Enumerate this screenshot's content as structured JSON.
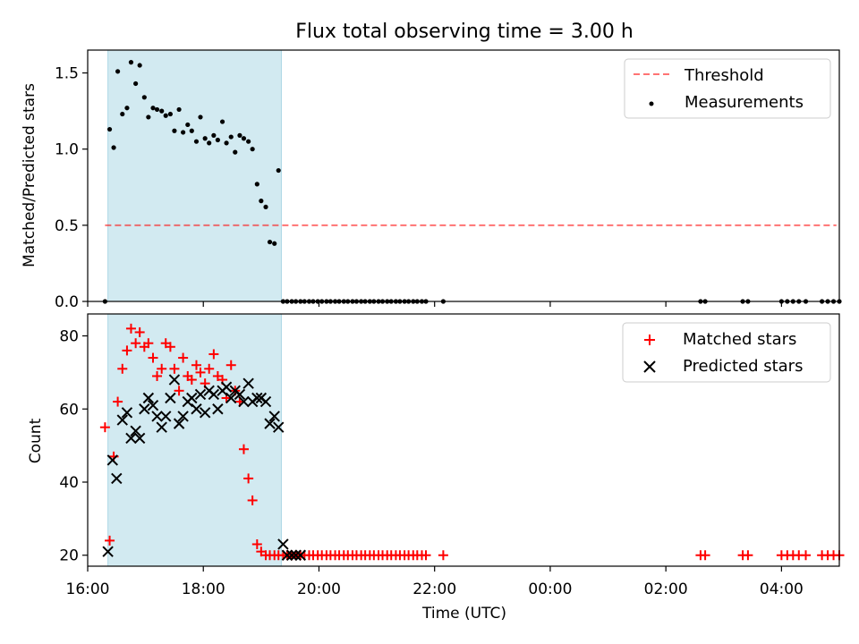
{
  "figure": {
    "title": "Flux total observing time = 3.00 h"
  },
  "colors": {
    "shade": "#add8e6",
    "threshold": "#ff0000",
    "measurements": "#000000",
    "matched": "#ff0000",
    "predicted": "#000000"
  },
  "chart_data": [
    {
      "type": "scatter",
      "ylabel": "Matched/Predicted stars",
      "xlim": [
        16.0,
        29.0
      ],
      "ylim": [
        0,
        1.65
      ],
      "yticks": [
        0.0,
        0.5,
        1.0,
        1.5
      ],
      "ytick_labels": [
        "0.0",
        "0.5",
        "1.0",
        "1.5"
      ],
      "shaded_region": [
        16.35,
        19.35
      ],
      "legend": {
        "position": "upper right",
        "entries": [
          "Threshold",
          "Measurements"
        ]
      },
      "threshold": {
        "name": "Threshold",
        "y": 0.5,
        "x": [
          16.3,
          28.95
        ]
      },
      "series": [
        {
          "name": "Measurements",
          "x": [
            16.3,
            16.38,
            16.45,
            16.52,
            16.6,
            16.68,
            16.75,
            16.83,
            16.9,
            16.98,
            17.05,
            17.13,
            17.2,
            17.28,
            17.35,
            17.43,
            17.5,
            17.58,
            17.65,
            17.73,
            17.8,
            17.88,
            17.95,
            18.03,
            18.1,
            18.18,
            18.25,
            18.33,
            18.4,
            18.48,
            18.55,
            18.63,
            18.7,
            18.78,
            18.85,
            18.93,
            19.0,
            19.08,
            19.15,
            19.23,
            19.3,
            19.38,
            19.45,
            19.53,
            19.6,
            19.68,
            19.75,
            19.83,
            19.9,
            19.98,
            20.05,
            20.13,
            20.2,
            20.28,
            20.35,
            20.43,
            20.5,
            20.58,
            20.65,
            20.73,
            20.8,
            20.88,
            20.95,
            21.03,
            21.1,
            21.18,
            21.25,
            21.33,
            21.4,
            21.48,
            21.55,
            21.63,
            21.7,
            21.78,
            21.85,
            22.15,
            26.6,
            26.68,
            27.33,
            27.42,
            28.0,
            28.1,
            28.2,
            28.3,
            28.42,
            28.7,
            28.8,
            28.9,
            29.0
          ],
          "y": [
            0.0,
            1.13,
            1.01,
            1.51,
            1.23,
            1.27,
            1.57,
            1.43,
            1.55,
            1.34,
            1.21,
            1.27,
            1.26,
            1.25,
            1.22,
            1.23,
            1.12,
            1.26,
            1.11,
            1.16,
            1.12,
            1.05,
            1.21,
            1.07,
            1.04,
            1.09,
            1.06,
            1.18,
            1.04,
            1.08,
            0.98,
            1.09,
            1.07,
            1.05,
            1.0,
            0.77,
            0.66,
            0.62,
            0.39,
            0.38,
            0.86,
            0.0,
            0.0,
            0.0,
            0.0,
            0.0,
            0.0,
            0.0,
            0.0,
            0.0,
            0.0,
            0.0,
            0.0,
            0.0,
            0.0,
            0.0,
            0.0,
            0.0,
            0.0,
            0.0,
            0.0,
            0.0,
            0.0,
            0.0,
            0.0,
            0.0,
            0.0,
            0.0,
            0.0,
            0.0,
            0.0,
            0.0,
            0.0,
            0.0,
            0.0,
            0.0,
            0.0,
            0.0,
            0.0,
            0.0,
            0.0,
            0.0,
            0.0,
            0.0,
            0.0,
            0.0,
            0.0,
            0.0,
            0.0
          ]
        }
      ]
    },
    {
      "type": "scatter",
      "xlabel": "Time (UTC)",
      "ylabel": "Count",
      "xlim": [
        16.0,
        29.0
      ],
      "ylim": [
        17,
        86
      ],
      "yticks": [
        20,
        40,
        60,
        80
      ],
      "ytick_labels": [
        "20",
        "40",
        "60",
        "80"
      ],
      "xticks": [
        16,
        18,
        20,
        22,
        24,
        26,
        28
      ],
      "xtick_labels": [
        "16:00",
        "18:00",
        "20:00",
        "22:00",
        "00:00",
        "02:00",
        "04:00"
      ],
      "shaded_region": [
        16.35,
        19.35
      ],
      "legend": {
        "position": "upper right",
        "entries": [
          "Matched stars",
          "Predicted stars"
        ]
      },
      "series": [
        {
          "name": "Matched stars",
          "marker": "+",
          "x": [
            16.3,
            16.38,
            16.45,
            16.52,
            16.6,
            16.68,
            16.75,
            16.83,
            16.9,
            16.98,
            17.05,
            17.13,
            17.2,
            17.28,
            17.35,
            17.43,
            17.5,
            17.58,
            17.65,
            17.73,
            17.8,
            17.88,
            17.95,
            18.03,
            18.1,
            18.18,
            18.25,
            18.33,
            18.4,
            18.48,
            18.55,
            18.63,
            18.7,
            18.78,
            18.85,
            18.93,
            19.0,
            19.08,
            19.15,
            19.23,
            19.3,
            19.38,
            19.45,
            19.53,
            19.6,
            19.68,
            19.75,
            19.83,
            19.9,
            19.98,
            20.05,
            20.13,
            20.2,
            20.28,
            20.35,
            20.43,
            20.5,
            20.58,
            20.65,
            20.73,
            20.8,
            20.88,
            20.95,
            21.03,
            21.1,
            21.18,
            21.25,
            21.33,
            21.4,
            21.48,
            21.55,
            21.63,
            21.7,
            21.78,
            21.85,
            22.15,
            26.6,
            26.68,
            27.33,
            27.42,
            28.0,
            28.1,
            28.2,
            28.3,
            28.42,
            28.7,
            28.8,
            28.9,
            29.0
          ],
          "y": [
            55,
            24,
            47,
            62,
            71,
            76,
            82,
            78,
            81,
            77,
            78,
            74,
            69,
            71,
            78,
            77,
            71,
            65,
            74,
            69,
            68,
            72,
            70,
            67,
            71,
            75,
            69,
            68,
            63,
            72,
            65,
            62,
            49,
            41,
            35,
            23,
            21,
            20,
            20,
            20,
            20,
            20,
            20,
            20,
            20,
            20,
            20,
            20,
            20,
            20,
            20,
            20,
            20,
            20,
            20,
            20,
            20,
            20,
            20,
            20,
            20,
            20,
            20,
            20,
            20,
            20,
            20,
            20,
            20,
            20,
            20,
            20,
            20,
            20,
            20,
            20,
            20,
            20,
            20,
            20,
            20,
            20,
            20,
            20,
            20,
            20,
            20,
            20,
            20
          ]
        },
        {
          "name": "Predicted stars",
          "marker": "x",
          "x": [
            16.35,
            16.43,
            16.5,
            16.6,
            16.68,
            16.75,
            16.83,
            16.9,
            16.98,
            17.05,
            17.13,
            17.2,
            17.28,
            17.35,
            17.43,
            17.5,
            17.58,
            17.65,
            17.73,
            17.8,
            17.88,
            17.95,
            18.03,
            18.1,
            18.18,
            18.25,
            18.33,
            18.4,
            18.48,
            18.55,
            18.63,
            18.7,
            18.78,
            18.85,
            18.93,
            19.0,
            19.08,
            19.15,
            19.23,
            19.3,
            19.38,
            19.45,
            19.53,
            19.6,
            19.68
          ],
          "y": [
            21,
            46,
            41,
            57,
            59,
            52,
            54,
            52,
            60,
            63,
            61,
            58,
            55,
            58,
            63,
            68,
            56,
            58,
            62,
            63,
            60,
            64,
            59,
            65,
            64,
            60,
            65,
            66,
            63,
            65,
            64,
            62,
            67,
            62,
            63,
            63,
            62,
            56,
            58,
            55,
            23,
            20,
            20,
            20,
            20
          ]
        }
      ]
    }
  ]
}
